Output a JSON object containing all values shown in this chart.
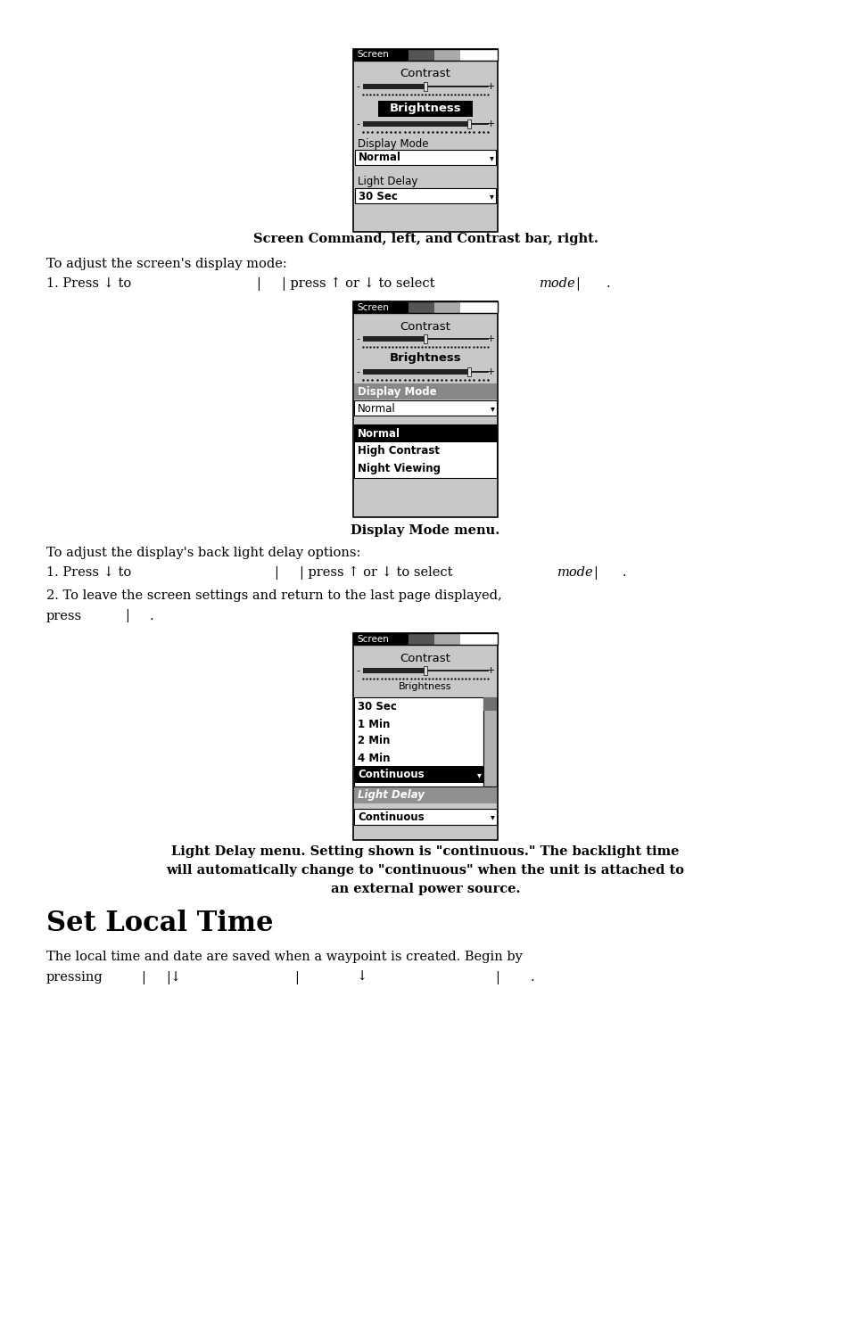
{
  "page_bg": "#ffffff",
  "screen_bg": "#c8c8c8",
  "caption1": "Screen Command, left, and Contrast bar, right.",
  "caption2": "Display Mode menu.",
  "caption3_line1": "Light Delay menu. Setting shown is \"continuous.\" The backlight time",
  "caption3_line2": "will automatically change to \"continuous\" when the unit is attached to",
  "caption3_line3": "an external power source.",
  "section_title": "Set Local Time",
  "body1": "To adjust the screen's display mode:",
  "body3": "To adjust the display's back light delay options:",
  "body5_line1": "2. To leave the screen settings and return to the last page displayed,",
  "body6": "The local time and date are saved when a waypoint is created. Begin by"
}
